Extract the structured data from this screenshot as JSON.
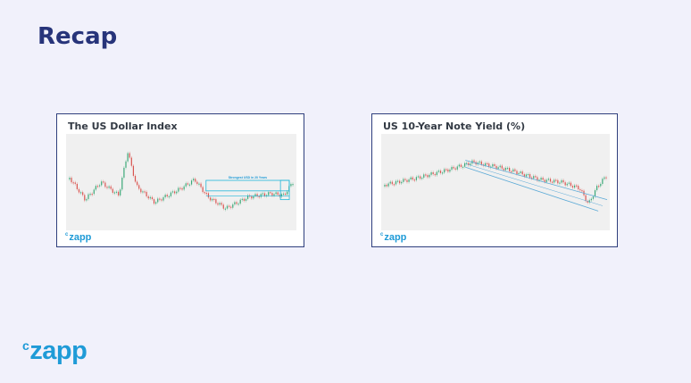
{
  "slide": {
    "title": "Recap"
  },
  "cards": [
    {
      "title": "The US Dollar Index",
      "annotation": "Strongest USD in 20 Years",
      "logo": "zapp"
    },
    {
      "title": "US 10-Year Note Yield (%)",
      "logo": "zapp"
    }
  ],
  "brand": {
    "logo_text": "zapp",
    "logo_prefix": "c",
    "color": "#1f9bd7"
  },
  "colors": {
    "title": "#27347a",
    "card_border": "#2f3f7d",
    "up": "#3aa877",
    "down": "#d9534f",
    "channel": "#5aa9d6",
    "highlight": "#1fb6d9"
  }
}
